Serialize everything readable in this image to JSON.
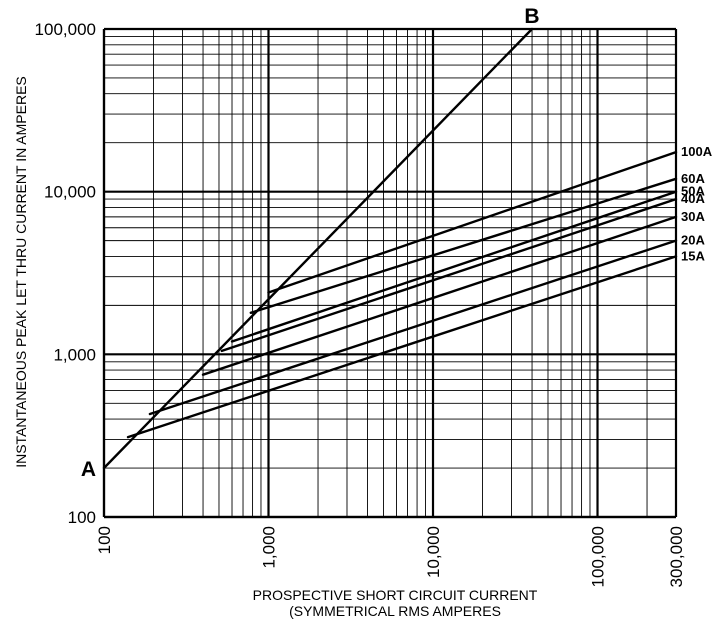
{
  "chart_data": {
    "type": "line",
    "title": "",
    "xlabel": "PROSPECTIVE SHORT CIRCUIT CURRENT",
    "xlabel_line2": "(SYMMETRICAL RMS AMPERES",
    "ylabel": "INSTANTANEOUS PEAK LET THRU CURRENT IN AMPERES",
    "x_scale": "log",
    "y_scale": "log",
    "xlim": [
      100,
      300000
    ],
    "ylim": [
      100,
      100000
    ],
    "grid": true,
    "x_ticks": [
      {
        "value": 100,
        "label": "100"
      },
      {
        "value": 1000,
        "label": "1,000"
      },
      {
        "value": 10000,
        "label": "10,000"
      },
      {
        "value": 100000,
        "label": "100,000"
      },
      {
        "value": 300000,
        "label": "300,000"
      }
    ],
    "y_ticks": [
      {
        "value": 100,
        "label": "100"
      },
      {
        "value": 1000,
        "label": "1,000"
      },
      {
        "value": 10000,
        "label": "10,000"
      },
      {
        "value": 100000,
        "label": "100,000"
      }
    ],
    "series": [
      {
        "name": "100A",
        "x": [
          1000,
          300000
        ],
        "y": [
          2400,
          17500
        ]
      },
      {
        "name": "60A",
        "x": [
          780,
          300000
        ],
        "y": [
          1800,
          12000
        ]
      },
      {
        "name": "50A",
        "x": [
          600,
          300000
        ],
        "y": [
          1200,
          10000
        ]
      },
      {
        "name": "40A",
        "x": [
          520,
          300000
        ],
        "y": [
          1050,
          9000
        ]
      },
      {
        "name": "30A",
        "x": [
          400,
          300000
        ],
        "y": [
          750,
          7000
        ]
      },
      {
        "name": "20A",
        "x": [
          190,
          300000
        ],
        "y": [
          430,
          5000
        ]
      },
      {
        "name": "15A",
        "x": [
          140,
          300000
        ],
        "y": [
          310,
          4000
        ]
      },
      {
        "name": "",
        "x": [
          100,
          40000
        ],
        "y": [
          200,
          100000
        ]
      }
    ],
    "annotations": [
      {
        "text": "A",
        "x": 100,
        "y": 200
      },
      {
        "text": "B",
        "x": 40000,
        "y": 100000
      }
    ]
  }
}
